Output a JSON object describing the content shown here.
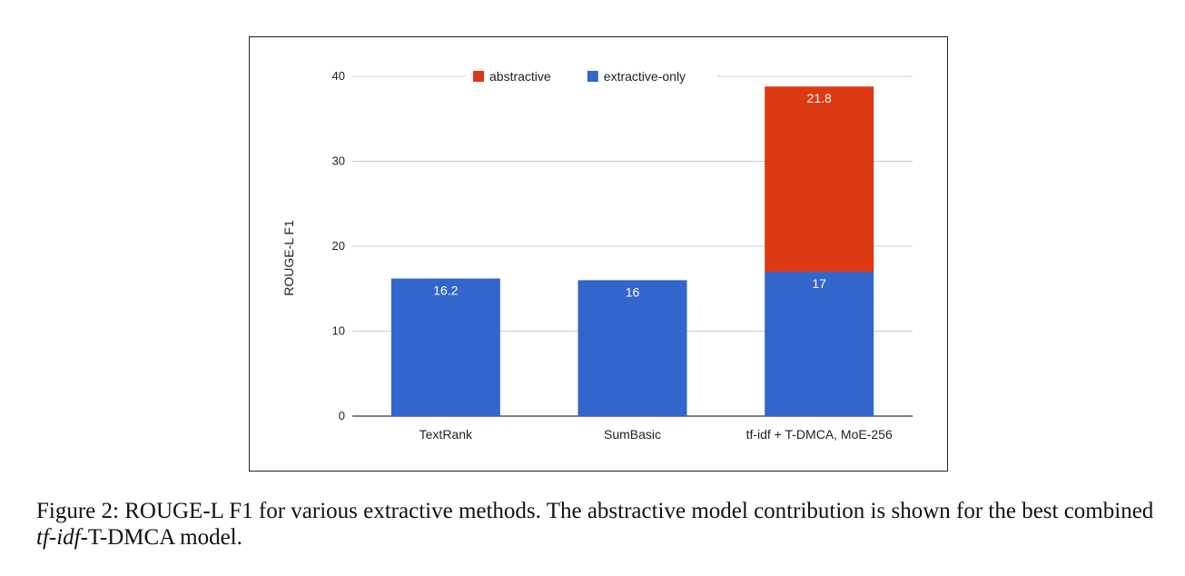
{
  "chart_data": {
    "type": "bar",
    "stacked": true,
    "categories": [
      "TextRank",
      "SumBasic",
      "tf-idf + T-DMCA, MoE-256"
    ],
    "series": [
      {
        "name": "extractive-only",
        "color": "#3366cc",
        "values": [
          16.2,
          16,
          17
        ]
      },
      {
        "name": "abstractive",
        "color": "#dc3912",
        "values": [
          0,
          0,
          21.8
        ]
      }
    ],
    "data_labels": {
      "extractive-only": [
        "16.2",
        "16",
        "17"
      ],
      "abstractive": [
        "",
        "",
        "21.8"
      ]
    },
    "legend_order": [
      "abstractive",
      "extractive-only"
    ],
    "legend_position": "top",
    "ylabel": "ROUGE-L F1",
    "xlabel": "",
    "ylim": [
      0,
      40
    ],
    "yticks": [
      0,
      10,
      20,
      30,
      40
    ],
    "grid": true
  },
  "caption": {
    "prefix": "Figure 2: ROUGE-L F1 for various extractive methods. The abstractive model contribution is shown for the best combined ",
    "emphasis": "tf-idf",
    "suffix": "-T-DMCA model."
  }
}
